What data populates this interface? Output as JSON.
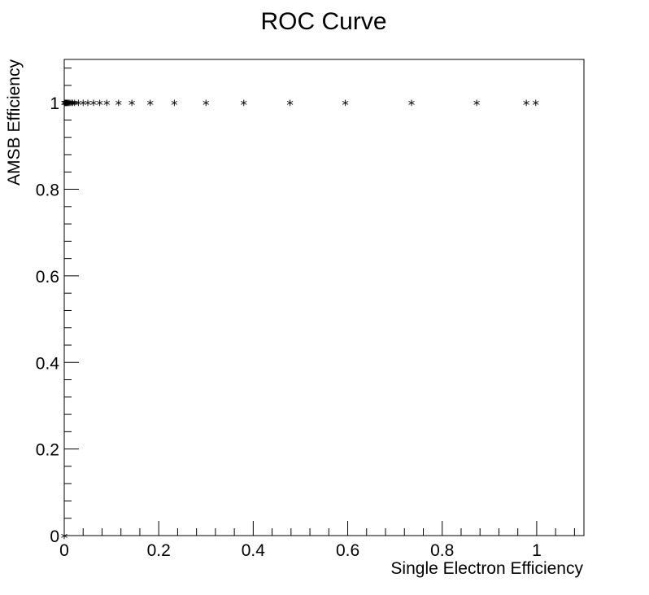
{
  "chart_data": {
    "type": "scatter",
    "title": "ROC Curve",
    "xlabel": "Single Electron Efficiency",
    "ylabel": "AMSB Efficiency",
    "xlim": [
      0,
      1.1
    ],
    "ylim": [
      0,
      1.1
    ],
    "x_ticks": [
      "0",
      "0.2",
      "0.4",
      "0.6",
      "0.8",
      "1"
    ],
    "y_ticks": [
      "0",
      "0.2",
      "0.4",
      "0.6",
      "0.8",
      "1"
    ],
    "marker": "*",
    "grid": false,
    "series": [
      {
        "x": [
          0,
          0.001,
          0.002,
          0.003,
          0.004,
          0.005,
          0.006,
          0.008,
          0.01,
          0.012,
          0.015,
          0.018,
          0.022,
          0.03,
          0.04,
          0.05,
          0.062,
          0.075,
          0.09,
          0.115,
          0.143,
          0.182,
          0.233,
          0.3,
          0.38,
          0.478,
          0.595,
          0.735,
          0.873,
          0.978,
          0.998
        ],
        "y": [
          1,
          1,
          1,
          1,
          1,
          1,
          1,
          1,
          1,
          1,
          1,
          1,
          1,
          1,
          1,
          1,
          1,
          1,
          1,
          1,
          1,
          1,
          1,
          1,
          1,
          1,
          1,
          1,
          1,
          1,
          1
        ]
      },
      {
        "x": [
          0
        ],
        "y": [
          0
        ]
      }
    ]
  }
}
